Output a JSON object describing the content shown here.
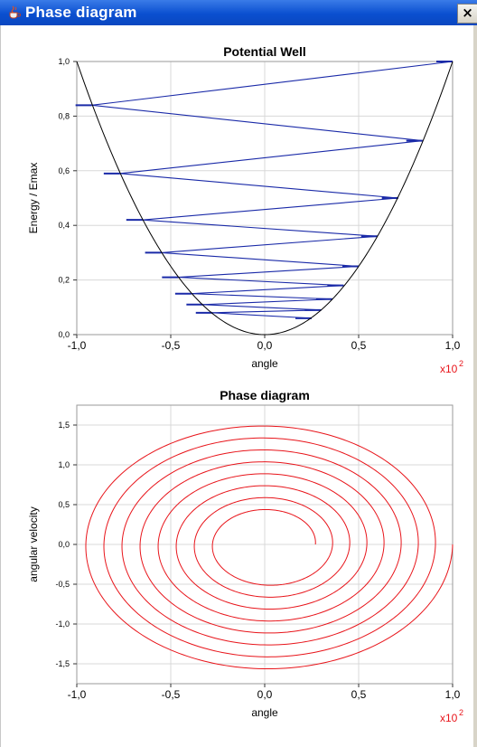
{
  "window": {
    "title": "Phase diagram",
    "icon": "java-cup-icon",
    "close_label": "×"
  },
  "colors": {
    "titlebar": "#0a4fd0",
    "well_curve": "#000000",
    "energy_lines": "#1a2aa8",
    "phase_curve": "#e8141a",
    "exponent_label": "#e8141a",
    "grid": "#d8d8d8"
  },
  "chart_data": [
    {
      "type": "line",
      "title": "Potential Well",
      "xlabel": "angle",
      "ylabel": "Energy / Emax",
      "x_exponent_label": "x10",
      "x_exponent_power": "2",
      "xlim": [
        -1.0,
        1.0
      ],
      "ylim": [
        0.0,
        1.0
      ],
      "xticks": [
        "-1,0",
        "-0,5",
        "0,0",
        "0,5",
        "1,0"
      ],
      "xtick_values": [
        -1.0,
        -0.5,
        0.0,
        0.5,
        1.0
      ],
      "yticks": [
        "0,0",
        "0,2",
        "0,4",
        "0,6",
        "0,8",
        "1,0"
      ],
      "ytick_values": [
        0.0,
        0.2,
        0.4,
        0.6,
        0.8,
        1.0
      ],
      "grid": true,
      "series": [
        {
          "kind": "well",
          "function": "energy = angle^2",
          "x_range": [
            -1.0,
            1.0
          ]
        },
        {
          "kind": "energy-trajectory",
          "points": [
            [
              1.0,
              1.0
            ],
            [
              -0.92,
              0.84
            ],
            [
              0.84,
              0.71
            ],
            [
              -0.77,
              0.59
            ],
            [
              0.71,
              0.5
            ],
            [
              -0.65,
              0.42
            ],
            [
              0.6,
              0.36
            ],
            [
              -0.55,
              0.3
            ],
            [
              0.5,
              0.25
            ],
            [
              -0.46,
              0.21
            ],
            [
              0.42,
              0.18
            ],
            [
              -0.39,
              0.15
            ],
            [
              0.36,
              0.13
            ],
            [
              -0.33,
              0.11
            ],
            [
              0.3,
              0.09
            ],
            [
              -0.28,
              0.08
            ],
            [
              0.25,
              0.06
            ]
          ]
        }
      ]
    },
    {
      "type": "line",
      "title": "Phase diagram",
      "xlabel": "angle",
      "ylabel": "angular velocity",
      "x_exponent_label": "x10",
      "x_exponent_power": "2",
      "xlim": [
        -1.0,
        1.0
      ],
      "ylim": [
        -1.75,
        1.75
      ],
      "xticks": [
        "-1,0",
        "-0,5",
        "0,0",
        "0,5",
        "1,0"
      ],
      "xtick_values": [
        -1.0,
        -0.5,
        0.0,
        0.5,
        1.0
      ],
      "yticks": [
        "-1,5",
        "-1,0",
        "-0,5",
        "0,0",
        "0,5",
        "1,0",
        "1,5"
      ],
      "ytick_values": [
        -1.5,
        -1.0,
        -0.5,
        0.0,
        0.5,
        1.0,
        1.5
      ],
      "grid": true,
      "series": [
        {
          "kind": "spiral",
          "start_amplitude_angle": 1.0,
          "end_amplitude_angle": 0.25,
          "start_amplitude_velocity": 1.6,
          "end_amplitude_velocity": 0.4,
          "turns": 8
        }
      ]
    }
  ]
}
